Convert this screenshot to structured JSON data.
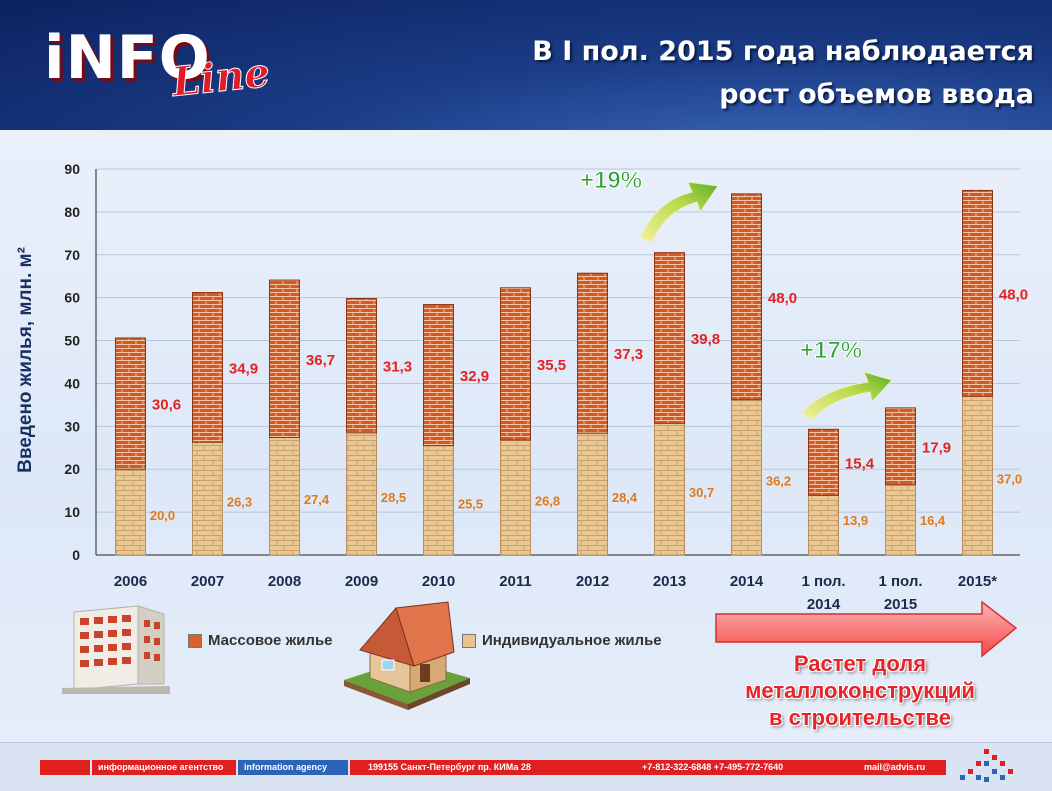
{
  "header": {
    "logo_main": "iNFO",
    "logo_sub": "Line",
    "title_line1": "В I пол. 2015 года наблюдается",
    "title_line2": "рост объемов ввода"
  },
  "colors": {
    "mass": "#d9622b",
    "individual": "#e8c58f",
    "growth_green": "#2f9e2f",
    "value_red": "#e32222",
    "value_orange": "#e07a1a"
  },
  "chart_data": {
    "type": "bar",
    "stacked": true,
    "ylabel": "Введено жилья, млн. м²",
    "ylim": [
      0,
      90
    ],
    "yticks": [
      "0",
      "10",
      "20",
      "30",
      "40",
      "50",
      "60",
      "70",
      "80",
      "90"
    ],
    "categories": [
      "2006",
      "2007",
      "2008",
      "2009",
      "2010",
      "2011",
      "2012",
      "2013",
      "2014",
      "1 пол. 2014",
      "1 пол. 2015",
      "2015*"
    ],
    "series": [
      {
        "name": "Индивидуальное жилье",
        "values": [
          20.0,
          26.3,
          27.4,
          28.5,
          25.5,
          26.8,
          28.4,
          30.7,
          36.2,
          13.9,
          16.4,
          37.0
        ],
        "labels": [
          "20,0",
          "26,3",
          "27,4",
          "28,5",
          "25,5",
          "26,8",
          "28,4",
          "30,7",
          "36,2",
          "13,9",
          "16,4",
          "37,0"
        ]
      },
      {
        "name": "Массовое жилье",
        "values": [
          30.6,
          34.9,
          36.7,
          31.3,
          32.9,
          35.5,
          37.3,
          39.8,
          48.0,
          15.4,
          17.9,
          48.0
        ],
        "labels": [
          "30,6",
          "34,9",
          "36,7",
          "31,3",
          "32,9",
          "35,5",
          "37,3",
          "39,8",
          "48,0",
          "15,4",
          "17,9",
          "48,0"
        ]
      }
    ],
    "annotations": [
      "+19%",
      "+17%"
    ],
    "legend_position": "bottom"
  },
  "legend": {
    "mass_label": "Массовое жилье",
    "individual_label": "Индивидуальное жилье"
  },
  "note": {
    "line1": "Растет доля",
    "line2": "металлоконструкций",
    "line3": "в строительстве"
  },
  "footer": {
    "agency_ru": "информационное агентство",
    "agency_en": "information agency",
    "address": "199155 Санкт-Петербург пр. КИМа 28",
    "phones": "+7-812-322-6848 +7-495-772-7640",
    "email": "mail@advis.ru"
  }
}
